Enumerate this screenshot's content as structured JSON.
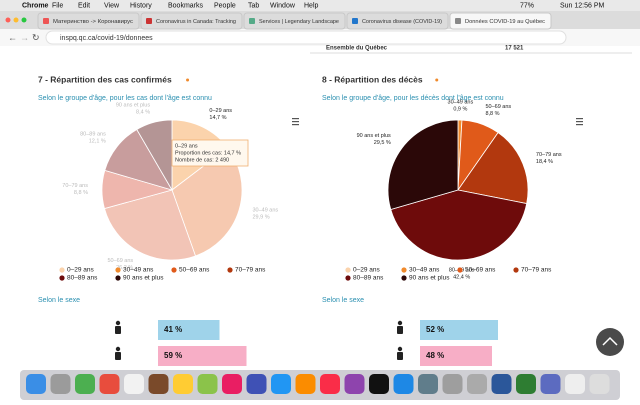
{
  "menu_bar": {
    "app": "Chrome",
    "items": [
      "File",
      "Edit",
      "View",
      "History",
      "Bookmarks",
      "People",
      "Tab",
      "Window",
      "Help"
    ],
    "battery": "77%",
    "clock": "Sun 12:56 PM"
  },
  "tabs": [
    "Материнство -> Коронавирус",
    "Coronavirus in Canada: Tracking",
    "Services | Legendary Landscape",
    "Coronavirus disease (COVID-19)",
    "Données COVID-19 au Québec"
  ],
  "address": "inspq.qc.ca/covid-19/donnees",
  "table_row": [
    "Ensemble du Québec",
    "17 521"
  ],
  "chart_data": [
    {
      "type": "pie",
      "title": "7 - Répartition des cas confirmés",
      "subtitle": "Selon le groupe d'âge, pour les cas dont l'âge est connu",
      "categories": [
        "0–29 ans",
        "30–49 ans",
        "50–69 ans",
        "70–79 ans",
        "80–89 ans",
        "90 ans et plus"
      ],
      "values": [
        14.7,
        29.9,
        26.2,
        8.8,
        12.1,
        8.4
      ],
      "value_labels": [
        "14,7 %",
        "29,9 %",
        "26,2 %",
        "8,8 %",
        "12,1 %",
        "8,4 %"
      ],
      "colors": [
        "#fbd3ac",
        "#f6c9b0",
        "#f2c4b6",
        "#eeb6ad",
        "#c89d9d",
        "#b49595"
      ],
      "legend_colors": [
        "#fbd3ac",
        "#f08a2c",
        "#e05a1a",
        "#b2380e",
        "#6e0b0b",
        "#2b0808"
      ],
      "tooltip": {
        "category": "0–29 ans",
        "proportion": "Proportion des cas: 14,7 %",
        "count": "Nombre de cas: 2 490"
      }
    },
    {
      "type": "pie",
      "title": "8 - Répartition des décès",
      "subtitle": "Selon le groupe d'âge, pour les décès dont l'âge est connu",
      "categories": [
        "0–29 ans",
        "30–49 ans",
        "50–69 ans",
        "70–79 ans",
        "80–89 ans",
        "90 ans et plus"
      ],
      "values": [
        0,
        0.9,
        8.8,
        18.4,
        42.4,
        29.5
      ],
      "value_labels": [
        null,
        "0,9 %",
        "8,8 %",
        "18,4 %",
        "42,4 %",
        "29,5 %"
      ],
      "colors": [
        "#fbd3ac",
        "#f08a2c",
        "#e05a1a",
        "#b2380e",
        "#6e0b0b",
        "#2b0808"
      ],
      "legend_colors": [
        "#fbd3ac",
        "#f08a2c",
        "#e05a1a",
        "#b2380e",
        "#6e0b0b",
        "#2b0808"
      ]
    }
  ],
  "sex_sections": [
    {
      "title": "Selon le sexe",
      "values": [
        41,
        59
      ],
      "value_labels": [
        "41 %",
        "59 %"
      ],
      "colors": [
        "#9fd3ea",
        "#f7aec6"
      ]
    },
    {
      "title": "Selon le sexe",
      "values": [
        52,
        48
      ],
      "value_labels": [
        "52 %",
        "48 %"
      ],
      "colors": [
        "#9fd3ea",
        "#f7aec6"
      ]
    }
  ]
}
